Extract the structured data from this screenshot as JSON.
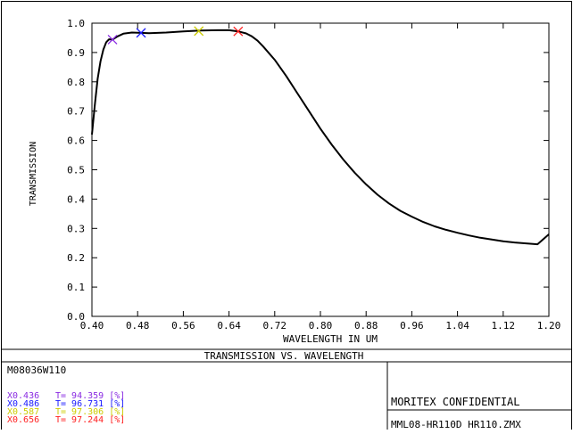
{
  "chart_data": {
    "type": "line",
    "title": "TRANSMISSION VS. WAVELENGTH",
    "xlabel": "WAVELENGTH IN UM",
    "ylabel": "TRANSMISSION",
    "xlim": [
      0.4,
      1.2
    ],
    "ylim": [
      0.0,
      1.0
    ],
    "x_ticks": [
      "0.40",
      "0.48",
      "0.56",
      "0.64",
      "0.72",
      "0.80",
      "0.88",
      "0.96",
      "1.04",
      "1.12",
      "1.20"
    ],
    "x_tick_values": [
      0.4,
      0.48,
      0.56,
      0.64,
      0.72,
      0.8,
      0.88,
      0.96,
      1.04,
      1.12,
      1.2
    ],
    "y_ticks": [
      "0.0",
      "0.1",
      "0.2",
      "0.3",
      "0.4",
      "0.5",
      "0.6",
      "0.7",
      "0.8",
      "0.9",
      "1.0"
    ],
    "y_tick_values": [
      0.0,
      0.1,
      0.2,
      0.3,
      0.4,
      0.5,
      0.6,
      0.7,
      0.8,
      0.9,
      1.0
    ],
    "grid": false,
    "series": [
      {
        "x": [
          0.4,
          0.405,
          0.41,
          0.415,
          0.42,
          0.425,
          0.43,
          0.436,
          0.445,
          0.455,
          0.47,
          0.486,
          0.5,
          0.53,
          0.56,
          0.59,
          0.62,
          0.64,
          0.656,
          0.67,
          0.68,
          0.69,
          0.7,
          0.72,
          0.74,
          0.76,
          0.78,
          0.8,
          0.82,
          0.84,
          0.86,
          0.88,
          0.9,
          0.92,
          0.94,
          0.96,
          0.98,
          1.0,
          1.02,
          1.04,
          1.06,
          1.08,
          1.1,
          1.12,
          1.14,
          1.16,
          1.18,
          1.2
        ],
        "y": [
          0.62,
          0.72,
          0.81,
          0.87,
          0.91,
          0.935,
          0.945,
          0.944,
          0.955,
          0.964,
          0.968,
          0.967,
          0.966,
          0.968,
          0.972,
          0.975,
          0.976,
          0.976,
          0.972,
          0.965,
          0.955,
          0.94,
          0.92,
          0.875,
          0.82,
          0.76,
          0.7,
          0.64,
          0.585,
          0.535,
          0.49,
          0.45,
          0.415,
          0.385,
          0.36,
          0.34,
          0.322,
          0.307,
          0.295,
          0.285,
          0.276,
          0.268,
          0.262,
          0.256,
          0.252,
          0.249,
          0.246,
          0.28
        ]
      }
    ],
    "markers": [
      {
        "x": 0.436,
        "y": 0.944,
        "color": "#8a2be2",
        "label": "X0.436",
        "t_label": "T= 94.359 [%]"
      },
      {
        "x": 0.486,
        "y": 0.967,
        "color": "#1a1aff",
        "label": "X0.486",
        "t_label": "T= 96.731 [%]"
      },
      {
        "x": 0.587,
        "y": 0.973,
        "color": "#cccc00",
        "label": "X0.587",
        "t_label": "T= 97.306 [%]"
      },
      {
        "x": 0.656,
        "y": 0.972,
        "color": "#ff2020",
        "label": "X0.656",
        "t_label": "T= 97.244 [%]"
      }
    ]
  },
  "footer": {
    "title": "TRANSMISSION VS. WAVELENGTH",
    "lens_id": "M08036W110",
    "confidential": "MORITEX CONFIDENTIAL",
    "file_name": "MML08-HR110D HR110.ZMX"
  }
}
